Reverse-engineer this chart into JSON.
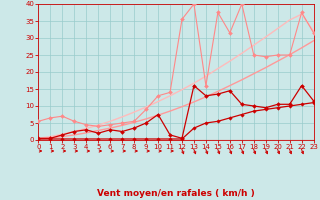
{
  "xlabel": "Vent moyen/en rafales ( km/h )",
  "background_color": "#cce8e8",
  "grid_color": "#99cccc",
  "xlim": [
    0,
    23
  ],
  "ylim": [
    0,
    40
  ],
  "yticks": [
    0,
    5,
    10,
    15,
    20,
    25,
    30,
    35,
    40
  ],
  "xticks": [
    0,
    1,
    2,
    3,
    4,
    5,
    6,
    7,
    8,
    9,
    10,
    11,
    12,
    13,
    14,
    15,
    16,
    17,
    18,
    19,
    20,
    21,
    22,
    23
  ],
  "x": [
    0,
    1,
    2,
    3,
    4,
    5,
    6,
    7,
    8,
    9,
    10,
    11,
    12,
    13,
    14,
    15,
    16,
    17,
    18,
    19,
    20,
    21,
    22,
    23
  ],
  "line1_y": [
    0.3,
    0.6,
    1.0,
    1.5,
    2.1,
    2.8,
    3.5,
    4.3,
    5.2,
    6.2,
    7.3,
    8.5,
    9.8,
    11.2,
    12.7,
    14.3,
    16.0,
    17.7,
    19.5,
    21.3,
    23.2,
    25.1,
    27.1,
    29.2
  ],
  "line2_y": [
    0.5,
    1.0,
    1.7,
    2.5,
    3.4,
    4.4,
    5.5,
    6.8,
    8.2,
    9.7,
    11.3,
    13.0,
    14.8,
    16.7,
    18.8,
    21.0,
    23.2,
    25.5,
    27.9,
    30.3,
    32.8,
    35.3,
    37.0,
    32.0
  ],
  "line3_y": [
    5.5,
    6.5,
    7.0,
    5.5,
    4.5,
    4.0,
    4.5,
    5.0,
    5.5,
    9.0,
    13.0,
    14.0,
    35.5,
    40.0,
    16.0,
    37.5,
    31.5,
    40.0,
    25.0,
    24.5,
    25.0,
    25.0,
    37.5,
    31.5
  ],
  "line4_y": [
    0.5,
    0.5,
    1.5,
    2.5,
    3.0,
    2.0,
    3.0,
    2.5,
    3.5,
    5.0,
    7.5,
    1.5,
    0.5,
    16.0,
    13.0,
    13.5,
    14.5,
    10.5,
    10.0,
    9.5,
    10.5,
    10.5,
    16.0,
    11.5
  ],
  "line5_y": [
    0.3,
    0.3,
    0.3,
    0.3,
    0.3,
    0.3,
    0.3,
    0.3,
    0.3,
    0.3,
    0.3,
    0.3,
    0.3,
    3.5,
    5.0,
    5.5,
    6.5,
    7.5,
    8.5,
    9.0,
    9.5,
    10.0,
    10.5,
    11.0
  ],
  "line1_color": "#ff9999",
  "line2_color": "#ffbbbb",
  "line3_color": "#ff8888",
  "line4_color": "#cc0000",
  "line5_color": "#cc0000",
  "tick_color": "#cc0000",
  "xlabel_color": "#cc0000",
  "xlabel_fontsize": 6.5,
  "tick_fontsize": 5.0
}
